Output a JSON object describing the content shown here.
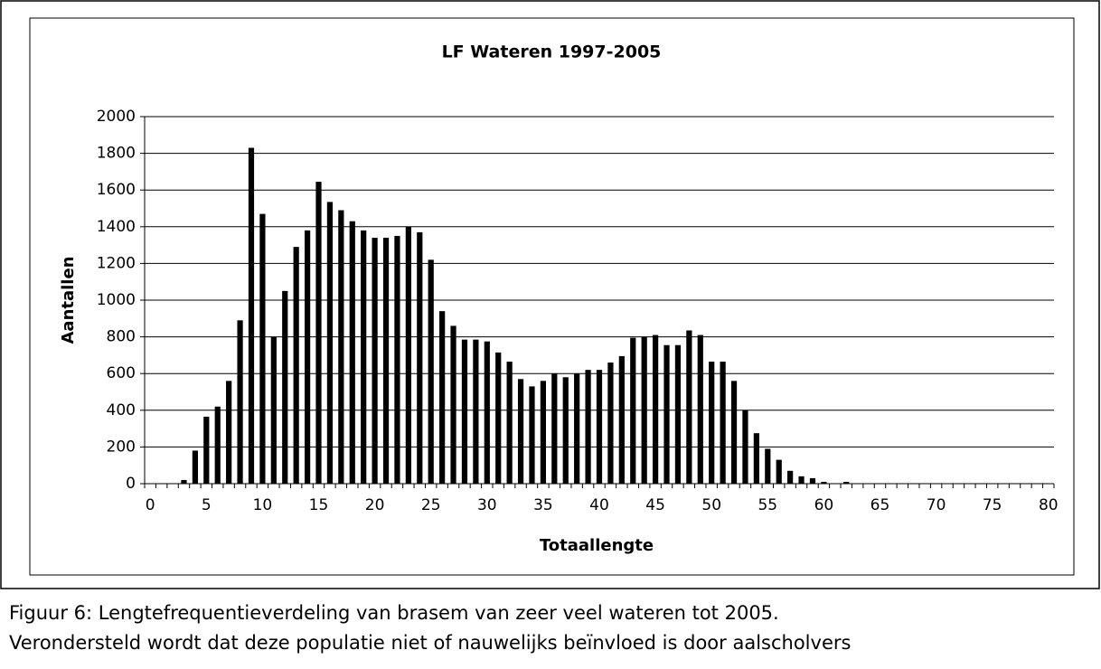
{
  "chart_data": {
    "type": "bar",
    "title": "LF Wateren 1997-2005",
    "x_label": "Totaallengte",
    "y_label": "Aantallen",
    "categories": [
      0,
      null,
      null,
      null,
      null,
      5,
      null,
      null,
      null,
      null,
      10,
      null,
      null,
      null,
      null,
      15,
      null,
      null,
      null,
      null,
      20,
      null,
      null,
      null,
      null,
      25,
      null,
      null,
      null,
      null,
      30,
      null,
      null,
      null,
      null,
      35,
      null,
      null,
      null,
      null,
      40,
      null,
      null,
      null,
      null,
      45,
      null,
      null,
      null,
      null,
      50,
      null,
      null,
      null,
      null,
      55,
      null,
      null,
      null,
      null,
      60,
      null,
      null,
      null,
      null,
      65,
      null,
      null,
      null,
      null,
      70,
      null,
      null,
      null,
      null,
      75,
      null,
      null,
      null,
      null,
      80
    ],
    "values": [
      0,
      0,
      0,
      20,
      180,
      365,
      420,
      560,
      890,
      1830,
      1470,
      800,
      1050,
      1290,
      1380,
      1645,
      1535,
      1490,
      1430,
      1380,
      1340,
      1340,
      1350,
      1400,
      1370,
      1220,
      940,
      860,
      785,
      785,
      775,
      715,
      665,
      570,
      530,
      560,
      600,
      580,
      600,
      620,
      620,
      660,
      695,
      795,
      800,
      810,
      755,
      755,
      835,
      810,
      665,
      665,
      560,
      400,
      275,
      190,
      130,
      70,
      40,
      30,
      10,
      0,
      10,
      0,
      0,
      0,
      0,
      0,
      0,
      0,
      0,
      0,
      0,
      0,
      0,
      0,
      0,
      0,
      0,
      0,
      0
    ],
    "color": "#000000",
    "ylim": [
      0,
      2000
    ],
    "yticks": [
      0,
      200,
      400,
      600,
      800,
      1000,
      1200,
      1400,
      1600,
      1800,
      2000
    ],
    "grid": true
  },
  "caption": [
    "Figuur 6: Lengtefrequentieverdeling van brasem van zeer veel wateren tot 2005.",
    "Verondersteld wordt dat deze populatie niet of nauwelijks beïnvloed is door aalscholvers"
  ]
}
